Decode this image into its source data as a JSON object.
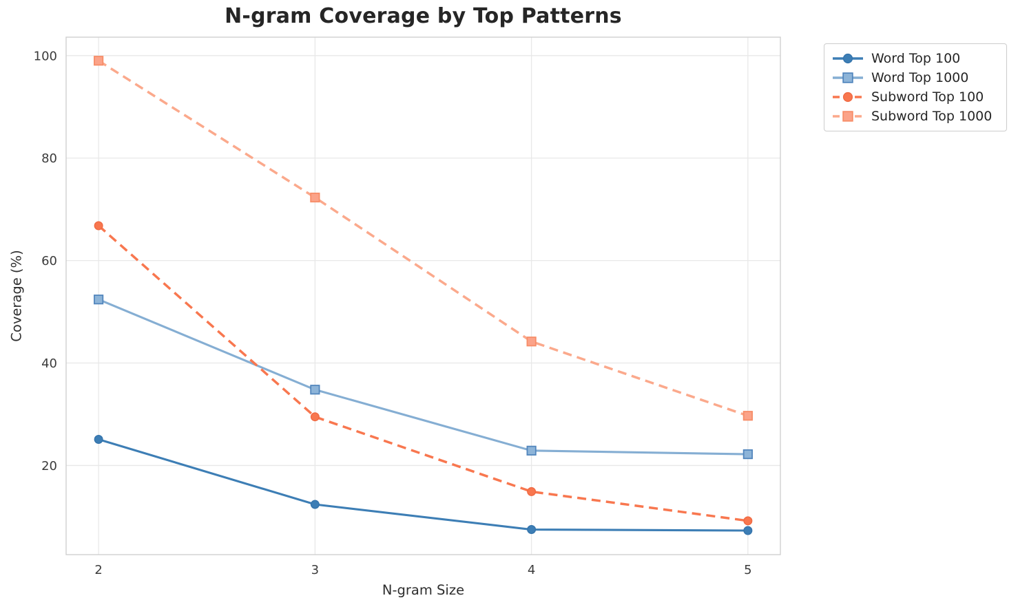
{
  "chart_data": {
    "type": "line",
    "title": "N-gram Coverage by Top Patterns",
    "xlabel": "N-gram Size",
    "ylabel": "Coverage (%)",
    "x": [
      2,
      3,
      4,
      5
    ],
    "xticks": [
      2,
      3,
      4,
      5
    ],
    "xticklabels": [
      "2",
      "3",
      "4",
      "5"
    ],
    "yticks": [
      20,
      40,
      60,
      80,
      100
    ],
    "yticklabels": [
      "20",
      "40",
      "60",
      "80",
      "100"
    ],
    "xlim": [
      1.85,
      5.15
    ],
    "ylim": [
      2.6,
      103.6
    ],
    "grid": true,
    "legend_position": "upper-right-outside",
    "colors": {
      "background": "#ffffff",
      "grid": "#e8e8e8",
      "spine": "#cfcfcf",
      "title": "#262626",
      "tick": "#3b3b3b"
    },
    "series": [
      {
        "name": "Word Top 100",
        "values": [
          25.1,
          12.4,
          7.5,
          7.3
        ],
        "color": "#3d7eb5",
        "marker_fill": "#3d7eb5",
        "marker_edge": "#3574ac",
        "marker": "circle",
        "dash": false
      },
      {
        "name": "Word Top 1000",
        "values": [
          52.4,
          34.8,
          22.9,
          22.2
        ],
        "color": "#85aed3",
        "marker_fill": "#8db4d8",
        "marker_edge": "#5286bd",
        "marker": "square",
        "dash": false
      },
      {
        "name": "Subword Top 100",
        "values": [
          66.8,
          29.5,
          14.9,
          9.2
        ],
        "color": "#f8774f",
        "marker_fill": "#f8774f",
        "marker_edge": "#f06a43",
        "marker": "circle",
        "dash": true
      },
      {
        "name": "Subword Top 1000",
        "values": [
          99.0,
          72.3,
          44.2,
          29.7
        ],
        "color": "#fba98c",
        "marker_fill": "#fba389",
        "marker_edge": "#f78d68",
        "marker": "square",
        "dash": true
      }
    ]
  }
}
